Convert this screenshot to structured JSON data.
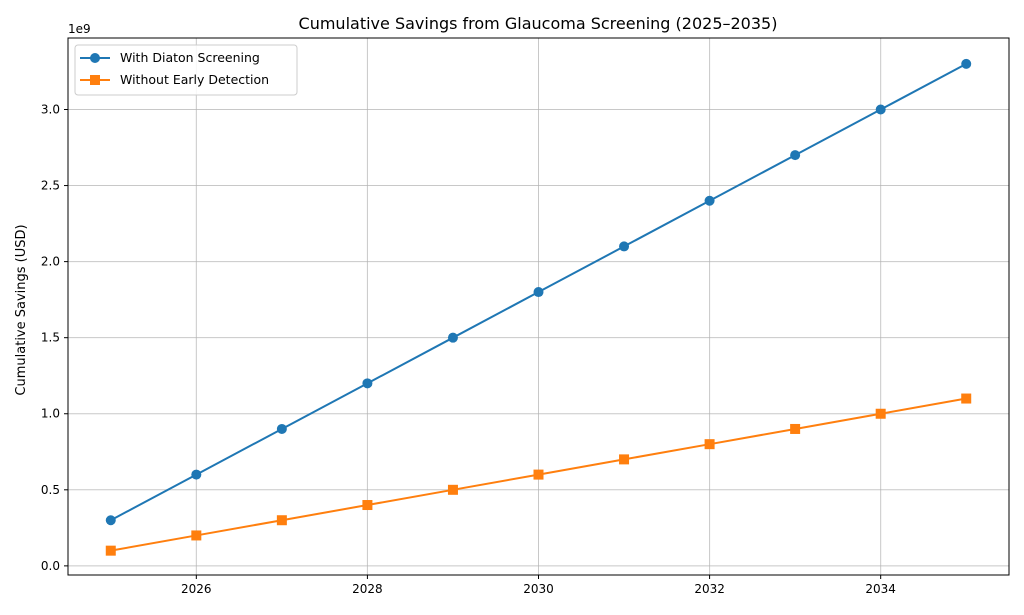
{
  "chart_data": {
    "type": "line",
    "title": "Cumulative Savings from Glaucoma Screening (2025–2035)",
    "xlabel": "",
    "ylabel": "Cumulative Savings (USD)",
    "y_offset_label": "1e9",
    "x": [
      2025,
      2026,
      2027,
      2028,
      2029,
      2030,
      2031,
      2032,
      2033,
      2034,
      2035
    ],
    "xlim": [
      2024.5,
      2035.5
    ],
    "ylim": [
      -0.06,
      3.47
    ],
    "xticks": [
      "2026",
      "2028",
      "2030",
      "2032",
      "2034"
    ],
    "yticks": [
      "0.0",
      "0.5",
      "1.0",
      "1.5",
      "2.0",
      "2.5",
      "3.0"
    ],
    "grid": true,
    "legend_position": "top-left",
    "series": [
      {
        "name": "With Diaton Screening",
        "color": "#1f77b4",
        "marker": "circle",
        "values": [
          0.3,
          0.6,
          0.9,
          1.2,
          1.5,
          1.8,
          2.1,
          2.4,
          2.7,
          3.0,
          3.3
        ]
      },
      {
        "name": "Without Early Detection",
        "color": "#ff7f0e",
        "marker": "square",
        "values": [
          0.1,
          0.2,
          0.3,
          0.4,
          0.5,
          0.6,
          0.7,
          0.8,
          0.9,
          1.0,
          1.1
        ]
      }
    ]
  }
}
